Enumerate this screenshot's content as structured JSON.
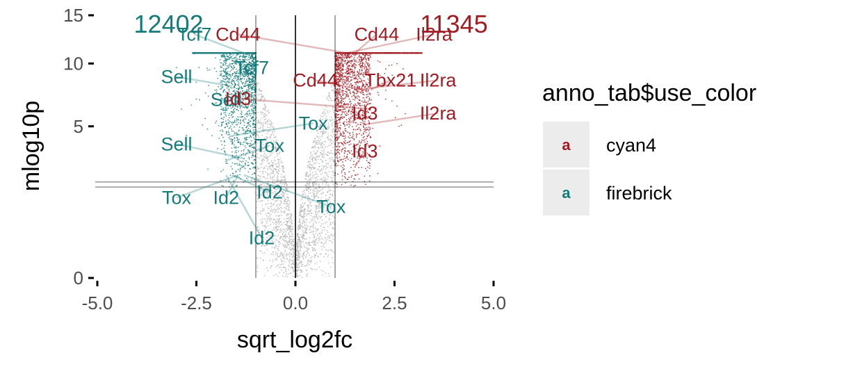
{
  "chart_data": {
    "type": "scatter",
    "xlabel": "sqrt_log2fc",
    "ylabel": "mlog10p",
    "xlim": [
      -5.0,
      5.0
    ],
    "ylim": [
      0,
      15
    ],
    "y_scale": "sqrt",
    "x_ticks": [
      "-5.0",
      "-2.5",
      "0.0",
      "2.5",
      "5.0"
    ],
    "y_ticks": [
      "0",
      "5",
      "10",
      "15"
    ],
    "y_tick_values": [
      0,
      5,
      10,
      15
    ],
    "y_cap": 11,
    "vlines": [
      -1,
      0,
      1
    ],
    "hlines": [
      1.8,
      2.0
    ],
    "grid": false,
    "colors": {
      "up": "#A01C22",
      "down": "#157A7A",
      "ns": "#B5B5B5"
    },
    "counts": [
      {
        "text": "12402",
        "x": -3.2,
        "y": 14.0,
        "group": "down"
      },
      {
        "text": "11345",
        "x": 4.0,
        "y": 14.0,
        "group": "up"
      }
    ],
    "labels": [
      {
        "text": "Tcf7",
        "x": -2.55,
        "y": 12.9,
        "group": "down"
      },
      {
        "text": "Tcf7",
        "x": -1.1,
        "y": 9.6,
        "group": "down"
      },
      {
        "text": "Sell",
        "x": -3.0,
        "y": 8.8,
        "group": "down"
      },
      {
        "text": "Sell",
        "x": -1.75,
        "y": 6.9,
        "group": "down"
      },
      {
        "text": "Sell",
        "x": -3.0,
        "y": 3.9,
        "group": "down"
      },
      {
        "text": "Tox",
        "x": -3.0,
        "y": 1.4,
        "group": "down"
      },
      {
        "text": "Tox",
        "x": 0.45,
        "y": 5.2,
        "group": "down"
      },
      {
        "text": "Tox",
        "x": -0.65,
        "y": 3.8,
        "group": "down"
      },
      {
        "text": "Tox",
        "x": 0.9,
        "y": 1.1,
        "group": "down"
      },
      {
        "text": "Id2",
        "x": -1.75,
        "y": 1.4,
        "group": "down"
      },
      {
        "text": "Id2",
        "x": -0.65,
        "y": 1.6,
        "group": "down"
      },
      {
        "text": "Id2",
        "x": -0.85,
        "y": 0.35,
        "group": "down"
      },
      {
        "text": "Cd44",
        "x": -1.45,
        "y": 12.9,
        "group": "up"
      },
      {
        "text": "Cd44",
        "x": 2.05,
        "y": 12.9,
        "group": "up"
      },
      {
        "text": "Cd44",
        "x": 0.5,
        "y": 8.5,
        "group": "up"
      },
      {
        "text": "Tbx21",
        "x": 2.4,
        "y": 8.5,
        "group": "up"
      },
      {
        "text": "Il2ra",
        "x": 3.5,
        "y": 12.9,
        "group": "up"
      },
      {
        "text": "Il2ra",
        "x": 3.6,
        "y": 8.5,
        "group": "up"
      },
      {
        "text": "Il2ra",
        "x": 3.6,
        "y": 5.9,
        "group": "up"
      },
      {
        "text": "Id3",
        "x": -1.45,
        "y": 7.0,
        "group": "up"
      },
      {
        "text": "Id3",
        "x": 1.75,
        "y": 5.9,
        "group": "up"
      },
      {
        "text": "Id3",
        "x": 1.75,
        "y": 3.5,
        "group": "up"
      }
    ],
    "legend": {
      "title": "anno_tab$use_color",
      "placement": "right",
      "key_glyph": "a",
      "items": [
        {
          "label": "cyan4",
          "color": "#A01C22"
        },
        {
          "label": "firebrick",
          "color": "#157A7A"
        }
      ]
    }
  }
}
